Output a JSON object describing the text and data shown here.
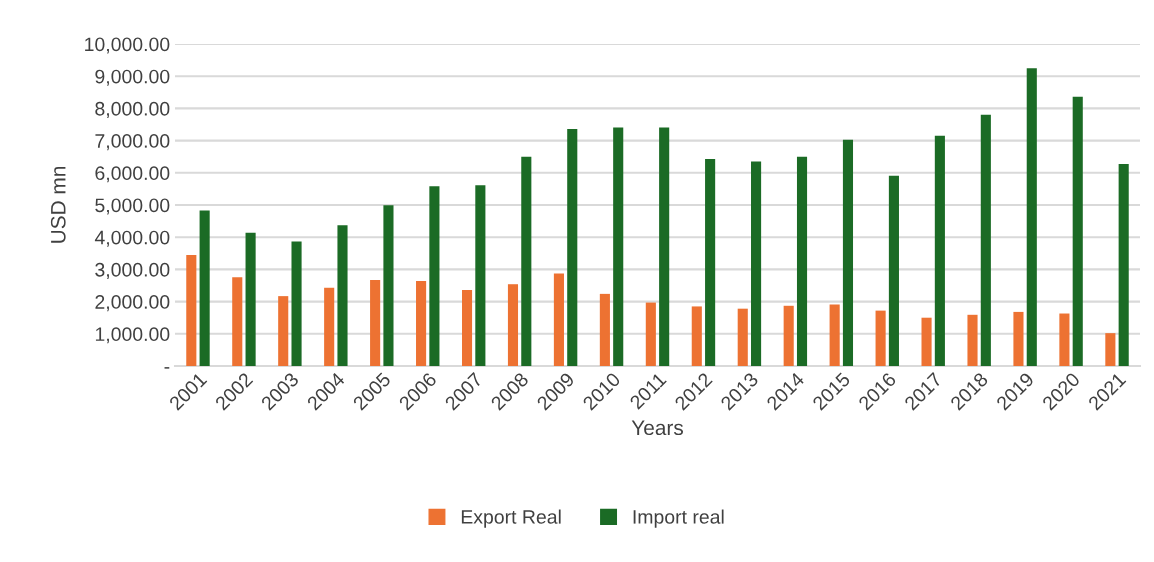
{
  "chart_data": {
    "type": "bar",
    "xlabel": "Years",
    "ylabel": "USD mn",
    "categories": [
      "2001",
      "2002",
      "2003",
      "2004",
      "2005",
      "2006",
      "2007",
      "2008",
      "2009",
      "2010",
      "2011",
      "2012",
      "2013",
      "2014",
      "2015",
      "2016",
      "2017",
      "2018",
      "2019",
      "2020",
      "2021"
    ],
    "series": [
      {
        "name": "Export Real",
        "color": "#ed7232",
        "values": [
          3450,
          2760,
          2170,
          2430,
          2670,
          2640,
          2360,
          2540,
          2870,
          2240,
          1970,
          1850,
          1780,
          1870,
          1910,
          1720,
          1500,
          1590,
          1680,
          1630,
          1020
        ]
      },
      {
        "name": "Import real",
        "color": "#1b6b25",
        "values": [
          4830,
          4140,
          3870,
          4370,
          4990,
          5580,
          5610,
          6500,
          7360,
          7410,
          7410,
          6430,
          6350,
          6500,
          7030,
          5910,
          7150,
          7800,
          9250,
          8360,
          6270
        ]
      }
    ],
    "ylim": [
      0,
      10000
    ],
    "yticks": [
      {
        "value": 0,
        "label": "-"
      },
      {
        "value": 1000,
        "label": "1,000.00"
      },
      {
        "value": 2000,
        "label": "2,000.00"
      },
      {
        "value": 3000,
        "label": "3,000.00"
      },
      {
        "value": 4000,
        "label": "4,000.00"
      },
      {
        "value": 5000,
        "label": "5,000.00"
      },
      {
        "value": 6000,
        "label": "6,000.00"
      },
      {
        "value": 7000,
        "label": "7,000.00"
      },
      {
        "value": 8000,
        "label": "8,000.00"
      },
      {
        "value": 9000,
        "label": "9,000.00"
      },
      {
        "value": 10000,
        "label": "10,000.00"
      }
    ],
    "grid": "y",
    "legend": "bottom"
  }
}
